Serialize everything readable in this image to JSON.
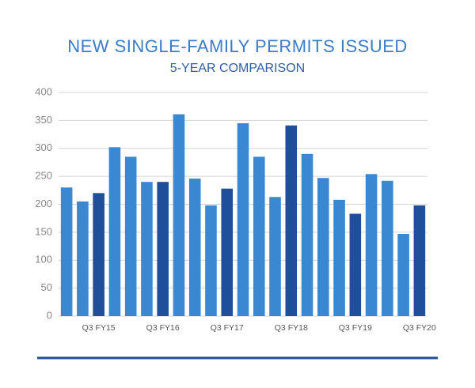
{
  "chart_data": {
    "type": "bar",
    "title": "NEW SINGLE-FAMILY PERMITS ISSUED",
    "subtitle": "5-YEAR COMPARISON",
    "categories": [
      null,
      null,
      "Q3 FY15",
      null,
      null,
      null,
      "Q3 FY16",
      null,
      null,
      null,
      "Q3 FY17",
      null,
      null,
      null,
      "Q3 FY18",
      null,
      null,
      null,
      "Q3 FY19",
      null,
      null,
      null,
      "Q3 FY20"
    ],
    "values": [
      230,
      205,
      220,
      302,
      285,
      240,
      240,
      361,
      246,
      198,
      228,
      345,
      285,
      213,
      341,
      290,
      247,
      208,
      183,
      254,
      242,
      147,
      198
    ],
    "colors": [
      "#3a87d2",
      "#3a87d2",
      "#1f4f9b",
      "#3a87d2",
      "#3a87d2",
      "#3a87d2",
      "#1f4f9b",
      "#3a87d2",
      "#3a87d2",
      "#3a87d2",
      "#1f4f9b",
      "#3a87d2",
      "#3a87d2",
      "#3a87d2",
      "#1f4f9b",
      "#3a87d2",
      "#3a87d2",
      "#3a87d2",
      "#1f4f9b",
      "#3a87d2",
      "#3a87d2",
      "#3a87d2",
      "#1f4f9b"
    ],
    "ylim": [
      0,
      400
    ],
    "yticks": [
      0,
      50,
      100,
      150,
      200,
      250,
      300,
      350,
      400
    ],
    "grid": true
  }
}
